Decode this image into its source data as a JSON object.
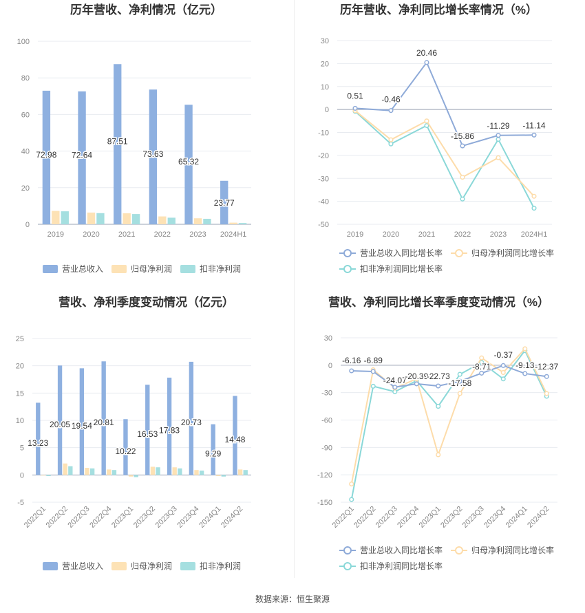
{
  "source_text": "数据来源：恒生聚源",
  "chart_data": [
    {
      "type": "bar",
      "title": "历年营收、净利情况（亿元）",
      "categories": [
        "2019",
        "2020",
        "2021",
        "2022",
        "2023",
        "2024H1"
      ],
      "ylim": [
        0,
        100
      ],
      "yticks": [
        0,
        20,
        40,
        60,
        80,
        100
      ],
      "grid": true,
      "legend_position": "bottom",
      "series": [
        {
          "name": "营业总收入",
          "color": "#8eb0e0",
          "values": [
            72.98,
            72.64,
            87.51,
            73.63,
            65.32,
            23.77
          ],
          "labels": [
            "72.98",
            "72.64",
            "87.51",
            "73.63",
            "65.32",
            "23.77"
          ]
        },
        {
          "name": "归母净利润",
          "color": "#fde2b5",
          "values": [
            7.3,
            6.4,
            6.0,
            4.3,
            3.3,
            0.9
          ]
        },
        {
          "name": "扣非净利润",
          "color": "#a5dfe0",
          "values": [
            7.1,
            6.1,
            5.6,
            3.6,
            3.0,
            0.7
          ]
        }
      ]
    },
    {
      "type": "line",
      "title": "历年营收、净利同比增长率情况（%）",
      "categories": [
        "2019",
        "2020",
        "2021",
        "2022",
        "2023",
        "2024H1"
      ],
      "ylim": [
        -50,
        30
      ],
      "yticks": [
        30,
        20,
        10,
        0,
        -10,
        -20,
        -30,
        -40,
        -50
      ],
      "grid": true,
      "legend_position": "bottom",
      "series": [
        {
          "name": "营业总收入同比增长率",
          "color": "#8eaad8",
          "values": [
            0.51,
            -0.46,
            20.46,
            -15.86,
            -11.29,
            -11.14
          ],
          "labels": [
            "0.51",
            "-0.46",
            "20.46",
            "-15.86",
            "-11.29",
            "-11.14"
          ]
        },
        {
          "name": "归母净利润同比增长率",
          "color": "#fddcaa",
          "values": [
            -0.5,
            -13.2,
            -5.0,
            -29.5,
            -21.0,
            -37.8
          ]
        },
        {
          "name": "扣非净利润同比增长率",
          "color": "#8ad8d8",
          "values": [
            -0.8,
            -15.0,
            -7.0,
            -39.0,
            -13.0,
            -43.0
          ]
        }
      ]
    },
    {
      "type": "bar",
      "title": "营收、净利季度变动情况（亿元）",
      "categories": [
        "2022Q1",
        "2022Q2",
        "2022Q3",
        "2022Q4",
        "2023Q1",
        "2023Q2",
        "2023Q3",
        "2023Q4",
        "2024Q1",
        "2024Q2"
      ],
      "ylim": [
        -5,
        25
      ],
      "yticks": [
        -5,
        0,
        5,
        10,
        15,
        20,
        25
      ],
      "grid": true,
      "legend_position": "bottom",
      "series": [
        {
          "name": "营业总收入",
          "color": "#8eb0e0",
          "values": [
            13.23,
            20.05,
            19.54,
            20.81,
            10.22,
            16.53,
            17.83,
            20.73,
            9.29,
            14.48
          ],
          "labels": [
            "13.23",
            "20.05",
            "19.54",
            "20.81",
            "10.22",
            "16.53",
            "17.83",
            "20.73",
            "9.29",
            "14.48"
          ]
        },
        {
          "name": "归母净利润",
          "color": "#fde2b5",
          "values": [
            -0.1,
            2.1,
            1.3,
            1.0,
            -0.3,
            1.5,
            1.4,
            0.9,
            -0.2,
            1.0
          ]
        },
        {
          "name": "扣非净利润",
          "color": "#a5dfe0",
          "values": [
            -0.2,
            1.6,
            1.2,
            0.9,
            -0.4,
            1.4,
            1.2,
            0.8,
            -0.3,
            0.9
          ]
        }
      ]
    },
    {
      "type": "line",
      "title": "营收、净利同比增长率季度变动情况（%）",
      "categories": [
        "2022Q1",
        "2022Q2",
        "2022Q3",
        "2022Q4",
        "2023Q1",
        "2023Q2",
        "2023Q3",
        "2023Q4",
        "2024Q1",
        "2024Q2"
      ],
      "ylim": [
        -150,
        30
      ],
      "yticks": [
        30,
        0,
        -30,
        -60,
        -90,
        -120,
        -150
      ],
      "grid": true,
      "legend_position": "bottom",
      "series": [
        {
          "name": "营业总收入同比增长率",
          "color": "#8eaad8",
          "values": [
            -6.16,
            -6.89,
            -24.07,
            -20.39,
            -22.73,
            -17.58,
            -8.71,
            -0.37,
            -9.13,
            -12.37
          ],
          "labels": [
            "-6.16",
            "-6.89",
            "-24.07",
            "-20.39",
            "-22.73",
            "-17.58",
            "-8.71",
            "-0.37",
            "-9.13",
            "-12.37"
          ]
        },
        {
          "name": "归母净利润同比增长率",
          "color": "#fddcaa",
          "values": [
            -130,
            -5,
            -25,
            -15,
            -98,
            -31,
            8,
            -8,
            18,
            -31
          ]
        },
        {
          "name": "扣非净利润同比增长率",
          "color": "#8ad8d8",
          "values": [
            -147,
            -23,
            -29,
            -17,
            -45,
            -10,
            3,
            -15,
            16,
            -34
          ]
        }
      ]
    }
  ]
}
